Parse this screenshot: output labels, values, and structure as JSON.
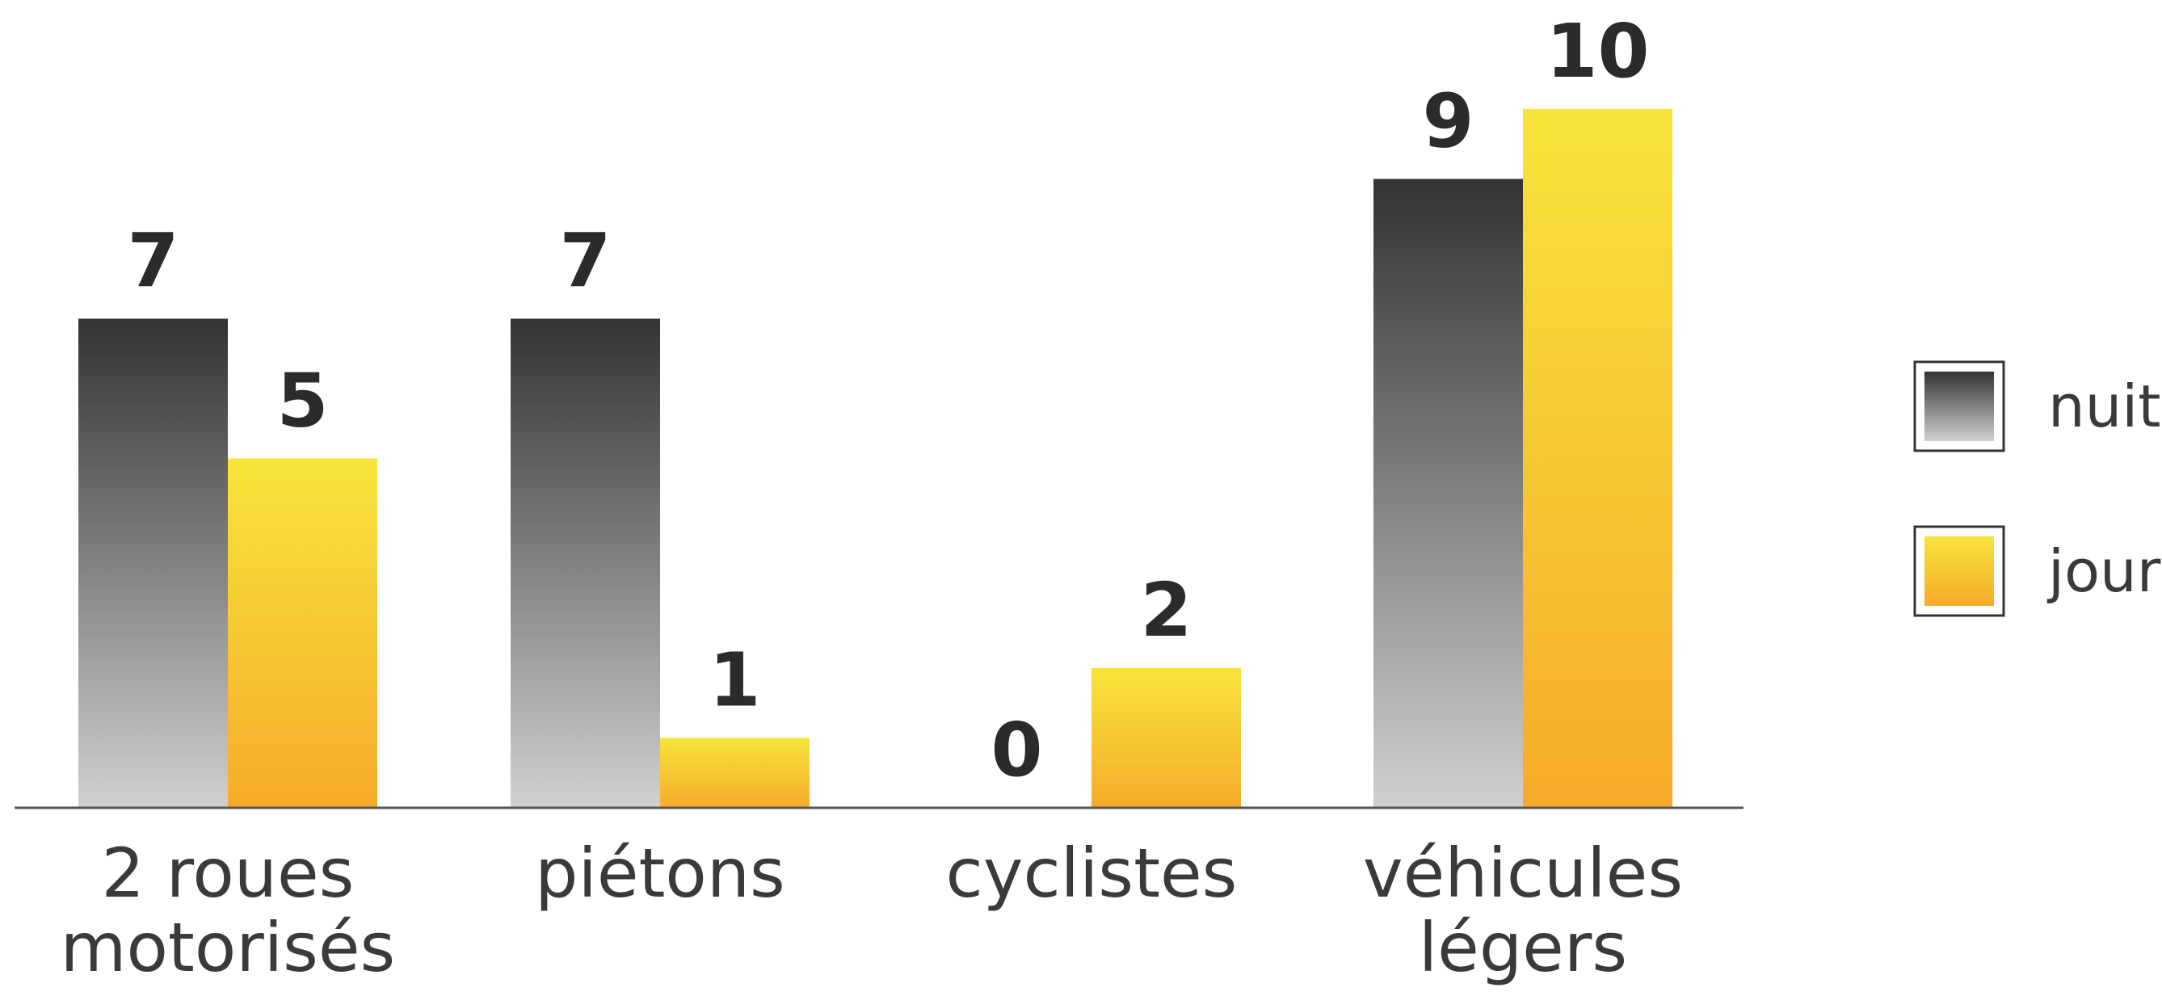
{
  "chart_data": {
    "type": "bar",
    "categories": [
      [
        "2 roues",
        "motorisés"
      ],
      [
        "piétons"
      ],
      [
        "cyclistes"
      ],
      [
        "véhicules",
        "légers"
      ]
    ],
    "series": [
      {
        "name": "nuit",
        "values": [
          7,
          7,
          0,
          9
        ],
        "color_top": "#333333",
        "color_bottom": "#d0d0d0"
      },
      {
        "name": "jour",
        "values": [
          5,
          1,
          2,
          10
        ],
        "color_top": "#f7e43b",
        "color_bottom": "#f6ab2a"
      }
    ],
    "ylim": [
      0,
      10
    ],
    "grid": false,
    "legend_position": "right",
    "axis_color": "#555555",
    "label_color": "#2b2b2b"
  }
}
